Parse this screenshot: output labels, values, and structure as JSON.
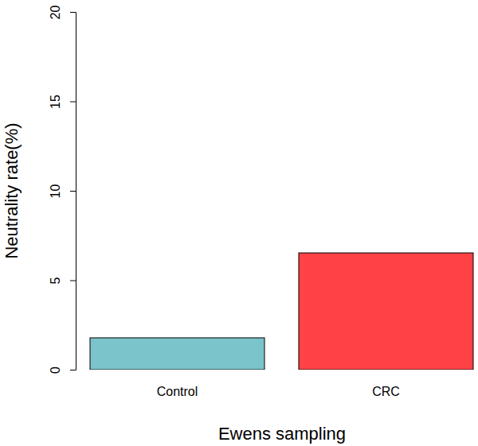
{
  "chart_data": {
    "type": "bar",
    "x_label": "Ewens sampling",
    "y_label": "Neutrality rate(%)",
    "categories": [
      "Control",
      "CRC"
    ],
    "values": [
      1.78,
      6.53
    ],
    "colors": [
      "#7bc4cc",
      "#ff4245"
    ],
    "ylim": [
      0,
      20
    ],
    "yticks": [
      0,
      5,
      10,
      15,
      20
    ],
    "grid": false
  }
}
